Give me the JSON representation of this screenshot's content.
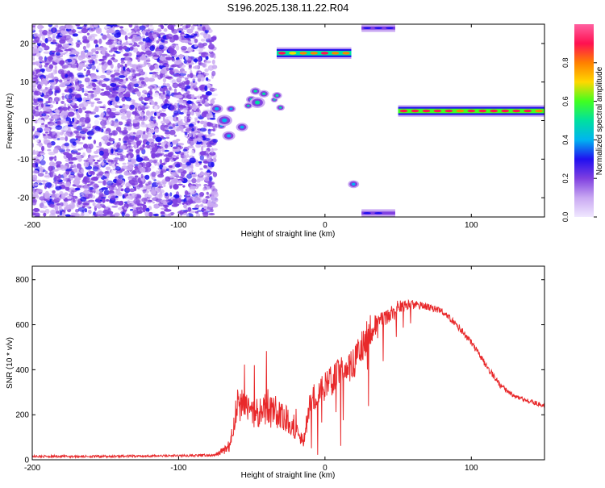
{
  "title": "S196.2025.138.11.22.R04",
  "chart_data": [
    {
      "type": "heatmap",
      "xlabel": "Height of straight line (km)",
      "ylabel": "Frequency (Hz)",
      "xlim": [
        -200,
        150
      ],
      "ylim": [
        -25,
        25
      ],
      "x_ticks": [
        "-200",
        "-100",
        "0",
        "100"
      ],
      "y_ticks": [
        "20",
        "10",
        "0",
        "-10",
        "-20"
      ],
      "colorbar_label": "Normalized spectral amplitude",
      "colorbar_ticks": [
        "0.0",
        "0.2",
        "0.4",
        "0.6",
        "0.8"
      ],
      "colorbar_range": [
        0,
        1
      ],
      "colormap": [
        "#f0e8ff",
        "#c9a8f2",
        "#8040e0",
        "#2010f0",
        "#00b4f0",
        "#00e0a0",
        "#40ff20",
        "#ffd800",
        "#ff8000",
        "#ff1050",
        "#ff60a0"
      ],
      "features": [
        {
          "x": [
            -200,
            -75
          ],
          "y": [
            -25,
            25
          ],
          "amplitude": 0.2,
          "kind": "noise"
        },
        {
          "x": [
            -75,
            -55
          ],
          "y": [
            -5,
            6
          ],
          "amplitude": 0.4,
          "kind": "blobs"
        },
        {
          "x": [
            -55,
            -30
          ],
          "y": [
            2,
            8
          ],
          "amplitude": 0.45,
          "kind": "blobs"
        },
        {
          "x": [
            -33,
            18
          ],
          "y": [
            16,
            19
          ],
          "amplitude": 0.9,
          "kind": "band"
        },
        {
          "x": [
            17,
            22
          ],
          "y": [
            -18,
            -15
          ],
          "amplitude": 0.4,
          "kind": "blob"
        },
        {
          "x": [
            25,
            48
          ],
          "y": [
            23,
            25
          ],
          "amplitude": 0.3,
          "kind": "band"
        },
        {
          "x": [
            25,
            48
          ],
          "y": [
            -25,
            -23
          ],
          "amplitude": 0.3,
          "kind": "band"
        },
        {
          "x": [
            50,
            150
          ],
          "y": [
            1,
            4
          ],
          "amplitude": 0.95,
          "kind": "band"
        }
      ]
    },
    {
      "type": "line",
      "xlabel": "Height of straight line (km)",
      "ylabel": "SNR (10 * v/v)",
      "xlim": [
        -200,
        150
      ],
      "ylim": [
        0,
        860
      ],
      "x_ticks": [
        "-200",
        "-100",
        "0",
        "100"
      ],
      "y_ticks": [
        "0",
        "200",
        "400",
        "600",
        "800"
      ],
      "color": "#e8292b",
      "series": [
        {
          "x": [
            -200,
            -150,
            -100,
            -75,
            -65,
            -60,
            -55,
            -50,
            -45,
            -40,
            -35,
            -30,
            -25,
            -20,
            -15,
            -10,
            -5,
            0,
            10,
            20,
            30,
            40,
            50,
            60,
            70,
            80,
            90,
            100,
            110,
            120,
            130,
            140,
            150
          ],
          "y": [
            15,
            15,
            18,
            20,
            60,
            250,
            230,
            200,
            210,
            230,
            200,
            200,
            180,
            130,
            80,
            250,
            300,
            330,
            380,
            430,
            560,
            620,
            680,
            690,
            680,
            660,
            600,
            520,
            420,
            330,
            280,
            260,
            240
          ],
          "spread": [
            10,
            10,
            10,
            12,
            60,
            150,
            160,
            120,
            130,
            180,
            150,
            130,
            120,
            80,
            60,
            120,
            130,
            130,
            140,
            150,
            160,
            80,
            60,
            40,
            30,
            30,
            30,
            30,
            30,
            25,
            20,
            20,
            20
          ]
        }
      ]
    }
  ]
}
